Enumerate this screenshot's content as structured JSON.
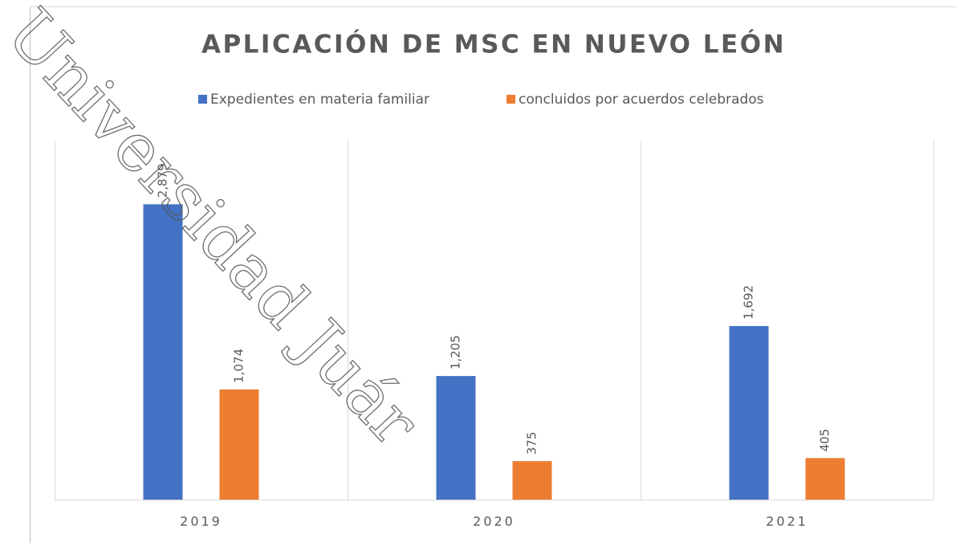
{
  "chart_data": {
    "type": "bar",
    "title": "APLICACIÓN DE MSC EN NUEVO LEÓN",
    "categories": [
      "2019",
      "2020",
      "2021"
    ],
    "series": [
      {
        "name": "Expedientes en materia familiar",
        "color": "#4472c4",
        "values": [
          2879,
          1205,
          1692
        ],
        "value_labels": [
          "2,879",
          "1,205",
          "1,692"
        ]
      },
      {
        "name": "concluidos por acuerdos celebrados",
        "color": "#ed7d31",
        "values": [
          1074,
          375,
          405
        ],
        "value_labels": [
          "1,074",
          "375",
          "405"
        ]
      }
    ],
    "ylim": [
      0,
      3500
    ],
    "grid": true,
    "legend": "top",
    "watermark": "Universidad Juár"
  }
}
